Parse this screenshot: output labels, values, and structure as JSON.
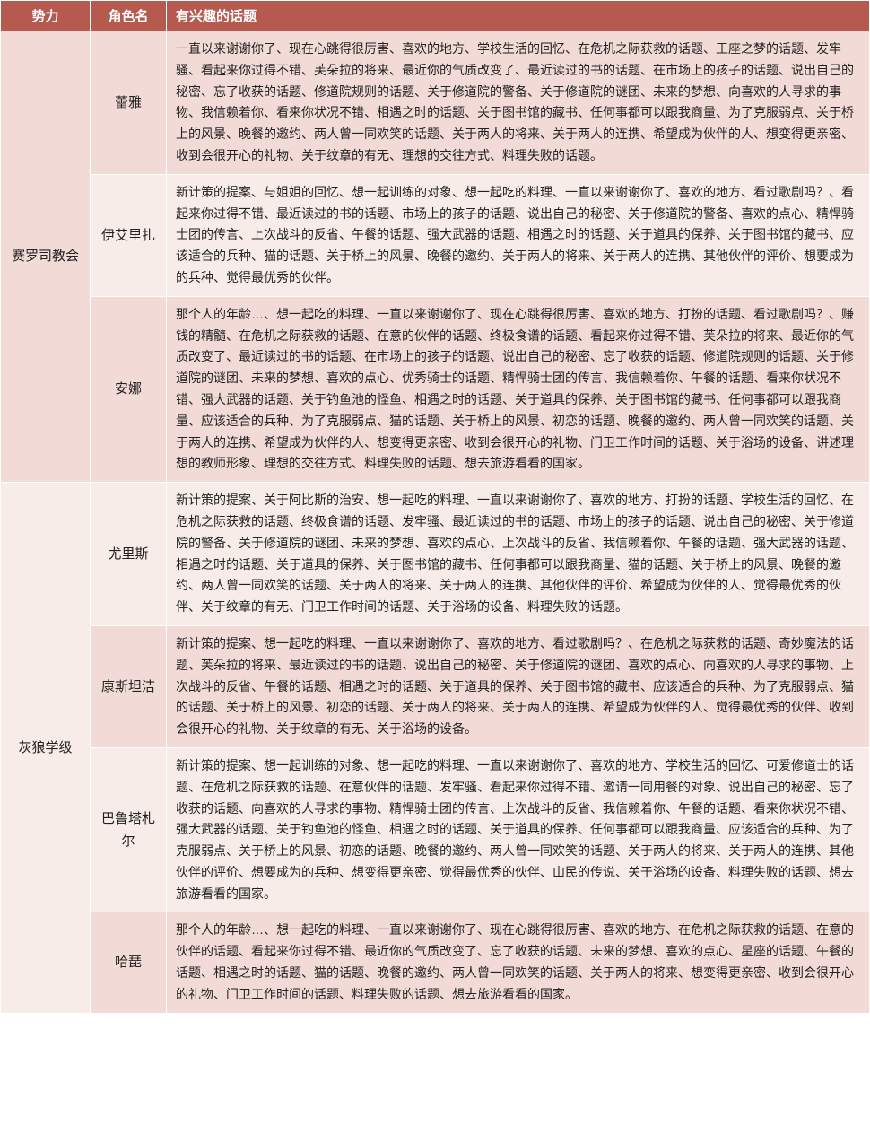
{
  "theme": {
    "header_bg": "#b65a50",
    "header_fg": "#ffffff",
    "row_odd_bg": "#f2dad6",
    "row_even_bg": "#f8ece9",
    "text_color": "#222222",
    "border_color": "#ffffff",
    "header_fontsize": 15,
    "cell_fontsize": 14,
    "line_height": 1.7
  },
  "columns": [
    {
      "key": "faction",
      "label": "势力",
      "width": 100,
      "align": "center"
    },
    {
      "key": "character",
      "label": "角色名",
      "width": 85,
      "align": "center"
    },
    {
      "key": "topics",
      "label": "有兴趣的话题",
      "width": "auto",
      "align": "left"
    }
  ],
  "factions": [
    {
      "name": "赛罗司教会",
      "rows": [
        {
          "character": "蕾雅",
          "topics": "一直以来谢谢你了、现在心跳得很厉害、喜欢的地方、学校生活的回忆、在危机之际获救的话题、王座之梦的话题、发牢骚、看起来你过得不错、芙朵拉的将来、最近你的气质改变了、最近读过的书的话题、在市场上的孩子的话题、说出自己的秘密、忘了收获的话题、修道院规则的话题、关于修道院的警备、关于修道院的谜团、未来的梦想、向喜欢的人寻求的事物、我信赖着你、看来你状况不错、相遇之时的话题、关于图书馆的藏书、任何事都可以跟我商量、为了克服弱点、关于桥上的风景、晚餐的邀约、两人曾一同欢笑的话题、关于两人的将来、关于两人的连携、希望成为伙伴的人、想变得更亲密、收到会很开心的礼物、关于纹章的有无、理想的交往方式、料理失败的话题。"
        },
        {
          "character": "伊艾里扎",
          "topics": "新计策的提案、与姐姐的回忆、想一起训练的对象、想一起吃的料理、一直以来谢谢你了、喜欢的地方、看过歌剧吗？、看起来你过得不错、最近读过的书的话题、市场上的孩子的话题、说出自己的秘密、关于修道院的警备、喜欢的点心、精悍骑士团的传言、上次战斗的反省、午餐的话题、强大武器的话题、相遇之时的话题、关于道具的保养、关于图书馆的藏书、应该适合的兵种、猫的话题、关于桥上的风景、晚餐的邀约、关于两人的将来、关于两人的连携、其他伙伴的评价、想要成为的兵种、觉得最优秀的伙伴。"
        },
        {
          "character": "安娜",
          "topics": "那个人的年龄…、想一起吃的料理、一直以来谢谢你了、现在心跳得很厉害、喜欢的地方、打扮的话题、看过歌剧吗？、赚钱的精髓、在危机之际获救的话题、在意的伙伴的话题、终极食谱的话题、看起来你过得不错、芙朵拉的将来、最近你的气质改变了、最近读过的书的话题、在市场上的孩子的话题、说出自己的秘密、忘了收获的话题、修道院规则的话题、关于修道院的谜团、未来的梦想、喜欢的点心、优秀骑士的话题、精悍骑士团的传言、我信赖着你、午餐的话题、看来你状况不错、强大武器的话题、关于钓鱼池的怪鱼、相遇之时的话题、关于道具的保养、关于图书馆的藏书、任何事都可以跟我商量、应该适合的兵种、为了克服弱点、猫的话题、关于桥上的风景、初恋的话题、晚餐的邀约、两人曾一同欢笑的话题、关于两人的连携、希望成为伙伴的人、想变得更亲密、收到会很开心的礼物、门卫工作时间的话题、关于浴场的设备、讲述理想的教师形象、理想的交往方式、料理失败的话题、想去旅游看看的国家。"
        }
      ]
    },
    {
      "name": "灰狼学级",
      "rows": [
        {
          "character": "尤里斯",
          "topics": "新计策的提案、关于阿比斯的治安、想一起吃的料理、一直以来谢谢你了、喜欢的地方、打扮的话题、学校生活的回忆、在危机之际获救的话题、终极食谱的话题、发牢骚、最近读过的书的话题、市场上的孩子的话题、说出自己的秘密、关于修道院的警备、关于修道院的谜团、未来的梦想、喜欢的点心、上次战斗的反省、我信赖着你、午餐的话题、强大武器的话题、相遇之时的话题、关于道具的保养、关于图书馆的藏书、任何事都可以跟我商量、猫的话题、关于桥上的风景、晚餐的邀约、两人曾一同欢笑的话题、关于两人的将来、关于两人的连携、其他伙伴的评价、希望成为伙伴的人、觉得最优秀的伙伴、关于纹章的有无、门卫工作时间的话题、关于浴场的设备、料理失败的话题。"
        },
        {
          "character": "康斯坦洁",
          "topics": "新计策的提案、想一起吃的料理、一直以来谢谢你了、喜欢的地方、看过歌剧吗？、在危机之际获救的话题、奇妙魔法的话题、芙朵拉的将来、最近读过的书的话题、说出自己的秘密、关于修道院的谜团、喜欢的点心、向喜欢的人寻求的事物、上次战斗的反省、午餐的话题、相遇之时的话题、关于道具的保养、关于图书馆的藏书、应该适合的兵种、为了克服弱点、猫的话题、关于桥上的风景、初恋的话题、关于两人的将来、关于两人的连携、希望成为伙伴的人、觉得最优秀的伙伴、收到会很开心的礼物、关于纹章的有无、关于浴场的设备。"
        },
        {
          "character": "巴鲁塔札尔",
          "topics": "新计策的提案、想一起训练的对象、想一起吃的料理、一直以来谢谢你了、喜欢的地方、学校生活的回忆、可爱修道士的话题、在危机之际获救的话题、在意伙伴的话题、发牢骚、看起来你过得不错、邀请一同用餐的对象、说出自己的秘密、忘了收获的话题、向喜欢的人寻求的事物、精悍骑士团的传言、上次战斗的反省、我信赖着你、午餐的话题、看来你状况不错、强大武器的话题、关于钓鱼池的怪鱼、相遇之时的话题、关于道具的保养、任何事都可以跟我商量、应该适合的兵种、为了克服弱点、关于桥上的风景、初恋的话题、晚餐的邀约、两人曾一同欢笑的话题、关于两人的将来、关于两人的连携、其他伙伴的评价、想要成为的兵种、想变得更亲密、觉得最优秀的伙伴、山民的传说、关于浴场的设备、料理失败的话题、想去旅游看看的国家。"
        },
        {
          "character": "哈琵",
          "topics": "那个人的年龄…、想一起吃的料理、一直以来谢谢你了、现在心跳得很厉害、喜欢的地方、在危机之际获救的话题、在意的伙伴的话题、看起来你过得不错、最近你的气质改变了、忘了收获的话题、未来的梦想、喜欢的点心、星座的话题、午餐的话题、相遇之时的话题、猫的话题、晚餐的邀约、两人曾一同欢笑的话题、关于两人的将来、想变得更亲密、收到会很开心的礼物、门卫工作时间的话题、料理失败的话题、想去旅游看看的国家。"
        }
      ]
    }
  ]
}
